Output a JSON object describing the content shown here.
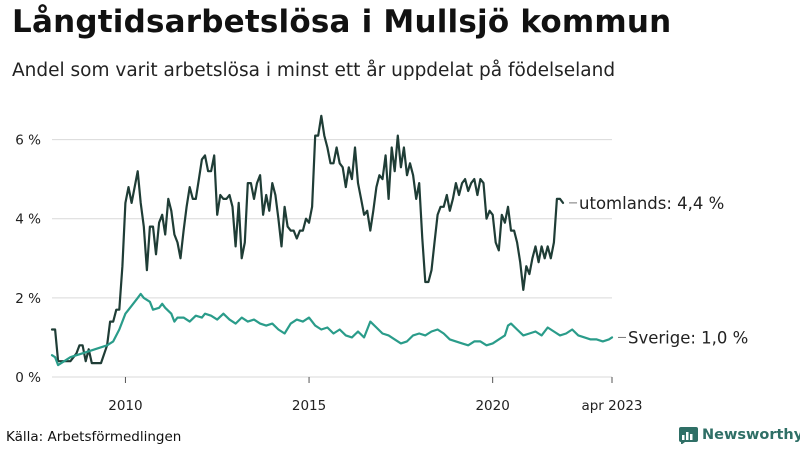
{
  "title": "Långtidsarbetslösa i Mullsjö kommun",
  "subtitle": "Andel som varit arbetslösa i minst ett år uppdelat på födelseland",
  "source": "Källa: Arbetsförmedlingen",
  "logo_text": "Newsworthy",
  "colors": {
    "utomlands": "#1f3d36",
    "sverige": "#2a9c8a",
    "grid": "#d9d9d9",
    "brand": "#2f6f66"
  },
  "chart_data": {
    "type": "line",
    "title": "Långtidsarbetslösa i Mullsjö kommun",
    "subtitle": "Andel som varit arbetslösa i minst ett år uppdelat på födelseland",
    "x_range": [
      "2008-01",
      "2023-04"
    ],
    "ylim": [
      0,
      7
    ],
    "y_ticks": [
      0,
      2,
      4,
      6
    ],
    "y_tick_labels": [
      "0 %",
      "2 %",
      "4 %",
      "6 %"
    ],
    "x_ticks": [
      "2010-01",
      "2015-01",
      "2020-01",
      "2023-04"
    ],
    "x_tick_labels": [
      "2010",
      "2015",
      "2020",
      "apr 2023"
    ],
    "grid": "horizontal",
    "series": [
      {
        "name": "utomlands",
        "end_label": "utomlands: 4,4 %",
        "color": "#1f3d36",
        "points": [
          [
            "2008-01",
            1.2
          ],
          [
            "2008-02",
            1.2
          ],
          [
            "2008-03",
            0.4
          ],
          [
            "2008-05",
            0.4
          ],
          [
            "2008-07",
            0.4
          ],
          [
            "2008-09",
            0.6
          ],
          [
            "2008-10",
            0.8
          ],
          [
            "2008-11",
            0.8
          ],
          [
            "2008-12",
            0.4
          ],
          [
            "2009-01",
            0.7
          ],
          [
            "2009-02",
            0.35
          ],
          [
            "2009-05",
            0.35
          ],
          [
            "2009-07",
            0.8
          ],
          [
            "2009-08",
            1.4
          ],
          [
            "2009-09",
            1.4
          ],
          [
            "2009-10",
            1.7
          ],
          [
            "2009-11",
            1.7
          ],
          [
            "2009-12",
            2.8
          ],
          [
            "2010-01",
            4.4
          ],
          [
            "2010-02",
            4.8
          ],
          [
            "2010-03",
            4.4
          ],
          [
            "2010-05",
            5.2
          ],
          [
            "2010-06",
            4.4
          ],
          [
            "2010-07",
            3.8
          ],
          [
            "2010-08",
            2.7
          ],
          [
            "2010-09",
            3.8
          ],
          [
            "2010-10",
            3.8
          ],
          [
            "2010-11",
            3.1
          ],
          [
            "2010-12",
            3.9
          ],
          [
            "2011-01",
            4.1
          ],
          [
            "2011-02",
            3.6
          ],
          [
            "2011-03",
            4.5
          ],
          [
            "2011-04",
            4.2
          ],
          [
            "2011-05",
            3.6
          ],
          [
            "2011-06",
            3.4
          ],
          [
            "2011-07",
            3.0
          ],
          [
            "2011-08",
            3.7
          ],
          [
            "2011-09",
            4.3
          ],
          [
            "2011-10",
            4.8
          ],
          [
            "2011-11",
            4.5
          ],
          [
            "2011-12",
            4.5
          ],
          [
            "2012-01",
            5.0
          ],
          [
            "2012-02",
            5.5
          ],
          [
            "2012-03",
            5.6
          ],
          [
            "2012-04",
            5.2
          ],
          [
            "2012-05",
            5.2
          ],
          [
            "2012-06",
            5.6
          ],
          [
            "2012-07",
            4.1
          ],
          [
            "2012-08",
            4.6
          ],
          [
            "2012-09",
            4.5
          ],
          [
            "2012-10",
            4.5
          ],
          [
            "2012-11",
            4.6
          ],
          [
            "2012-12",
            4.3
          ],
          [
            "2013-01",
            3.3
          ],
          [
            "2013-02",
            4.4
          ],
          [
            "2013-03",
            3.0
          ],
          [
            "2013-04",
            3.4
          ],
          [
            "2013-05",
            4.9
          ],
          [
            "2013-06",
            4.9
          ],
          [
            "2013-07",
            4.5
          ],
          [
            "2013-08",
            4.9
          ],
          [
            "2013-09",
            5.1
          ],
          [
            "2013-10",
            4.1
          ],
          [
            "2013-11",
            4.6
          ],
          [
            "2013-12",
            4.2
          ],
          [
            "2014-01",
            4.9
          ],
          [
            "2014-02",
            4.6
          ],
          [
            "2014-03",
            4.0
          ],
          [
            "2014-04",
            3.3
          ],
          [
            "2014-05",
            4.3
          ],
          [
            "2014-06",
            3.8
          ],
          [
            "2014-07",
            3.7
          ],
          [
            "2014-08",
            3.7
          ],
          [
            "2014-09",
            3.5
          ],
          [
            "2014-10",
            3.7
          ],
          [
            "2014-11",
            3.7
          ],
          [
            "2014-12",
            4.0
          ],
          [
            "2015-01",
            3.9
          ],
          [
            "2015-02",
            4.3
          ],
          [
            "2015-03",
            6.1
          ],
          [
            "2015-04",
            6.1
          ],
          [
            "2015-05",
            6.6
          ],
          [
            "2015-06",
            6.1
          ],
          [
            "2015-07",
            5.8
          ],
          [
            "2015-08",
            5.4
          ],
          [
            "2015-09",
            5.4
          ],
          [
            "2015-10",
            5.8
          ],
          [
            "2015-11",
            5.4
          ],
          [
            "2015-12",
            5.3
          ],
          [
            "2016-01",
            4.8
          ],
          [
            "2016-02",
            5.3
          ],
          [
            "2016-03",
            5.0
          ],
          [
            "2016-04",
            5.8
          ],
          [
            "2016-05",
            4.9
          ],
          [
            "2016-06",
            4.5
          ],
          [
            "2016-07",
            4.1
          ],
          [
            "2016-08",
            4.2
          ],
          [
            "2016-09",
            3.7
          ],
          [
            "2016-10",
            4.2
          ],
          [
            "2016-11",
            4.8
          ],
          [
            "2016-12",
            5.1
          ],
          [
            "2017-01",
            5.0
          ],
          [
            "2017-02",
            5.6
          ],
          [
            "2017-03",
            4.5
          ],
          [
            "2017-04",
            5.8
          ],
          [
            "2017-05",
            5.2
          ],
          [
            "2017-06",
            6.1
          ],
          [
            "2017-07",
            5.3
          ],
          [
            "2017-08",
            5.8
          ],
          [
            "2017-09",
            5.1
          ],
          [
            "2017-10",
            5.4
          ],
          [
            "2017-11",
            5.1
          ],
          [
            "2017-12",
            4.5
          ],
          [
            "2018-01",
            4.9
          ],
          [
            "2018-02",
            3.5
          ],
          [
            "2018-03",
            2.4
          ],
          [
            "2018-04",
            2.4
          ],
          [
            "2018-05",
            2.7
          ],
          [
            "2018-06",
            3.4
          ],
          [
            "2018-07",
            4.1
          ],
          [
            "2018-08",
            4.3
          ],
          [
            "2018-09",
            4.3
          ],
          [
            "2018-10",
            4.6
          ],
          [
            "2018-11",
            4.2
          ],
          [
            "2018-12",
            4.5
          ],
          [
            "2019-01",
            4.9
          ],
          [
            "2019-02",
            4.6
          ],
          [
            "2019-03",
            4.9
          ],
          [
            "2019-04",
            5.0
          ],
          [
            "2019-05",
            4.7
          ],
          [
            "2019-06",
            4.9
          ],
          [
            "2019-07",
            5.0
          ],
          [
            "2019-08",
            4.6
          ],
          [
            "2019-09",
            5.0
          ],
          [
            "2019-10",
            4.9
          ],
          [
            "2019-11",
            4.0
          ],
          [
            "2019-12",
            4.2
          ],
          [
            "2020-01",
            4.1
          ],
          [
            "2020-02",
            3.4
          ],
          [
            "2020-03",
            3.2
          ],
          [
            "2020-04",
            4.1
          ],
          [
            "2020-05",
            3.9
          ],
          [
            "2020-06",
            4.3
          ],
          [
            "2020-07",
            3.7
          ],
          [
            "2020-08",
            3.7
          ],
          [
            "2020-09",
            3.4
          ],
          [
            "2020-10",
            2.9
          ],
          [
            "2020-11",
            2.2
          ],
          [
            "2020-12",
            2.8
          ],
          [
            "2021-01",
            2.6
          ],
          [
            "2021-02",
            3.0
          ],
          [
            "2021-03",
            3.3
          ],
          [
            "2021-04",
            2.9
          ],
          [
            "2021-05",
            3.3
          ],
          [
            "2021-06",
            3.0
          ],
          [
            "2021-07",
            3.3
          ],
          [
            "2021-08",
            3.0
          ],
          [
            "2021-09",
            3.4
          ],
          [
            "2021-10",
            4.5
          ],
          [
            "2021-11",
            4.5
          ],
          [
            "2021-12",
            4.4
          ]
        ]
      },
      {
        "name": "Sverige",
        "end_label": "Sverige: 1,0 %",
        "color": "#2a9c8a",
        "points": [
          [
            "2008-01",
            0.55
          ],
          [
            "2008-02",
            0.5
          ],
          [
            "2008-03",
            0.3
          ],
          [
            "2008-05",
            0.4
          ],
          [
            "2008-07",
            0.5
          ],
          [
            "2008-09",
            0.55
          ],
          [
            "2008-11",
            0.6
          ],
          [
            "2009-01",
            0.65
          ],
          [
            "2009-03",
            0.7
          ],
          [
            "2009-05",
            0.75
          ],
          [
            "2009-07",
            0.8
          ],
          [
            "2009-09",
            0.9
          ],
          [
            "2009-11",
            1.2
          ],
          [
            "2010-01",
            1.6
          ],
          [
            "2010-03",
            1.8
          ],
          [
            "2010-05",
            2.0
          ],
          [
            "2010-06",
            2.1
          ],
          [
            "2010-07",
            2.0
          ],
          [
            "2010-09",
            1.9
          ],
          [
            "2010-10",
            1.7
          ],
          [
            "2010-12",
            1.75
          ],
          [
            "2011-01",
            1.85
          ],
          [
            "2011-02",
            1.75
          ],
          [
            "2011-04",
            1.6
          ],
          [
            "2011-05",
            1.4
          ],
          [
            "2011-06",
            1.5
          ],
          [
            "2011-08",
            1.5
          ],
          [
            "2011-10",
            1.4
          ],
          [
            "2011-12",
            1.55
          ],
          [
            "2012-02",
            1.5
          ],
          [
            "2012-03",
            1.6
          ],
          [
            "2012-05",
            1.55
          ],
          [
            "2012-07",
            1.45
          ],
          [
            "2012-09",
            1.6
          ],
          [
            "2012-11",
            1.45
          ],
          [
            "2013-01",
            1.35
          ],
          [
            "2013-03",
            1.5
          ],
          [
            "2013-05",
            1.4
          ],
          [
            "2013-07",
            1.45
          ],
          [
            "2013-09",
            1.35
          ],
          [
            "2013-11",
            1.3
          ],
          [
            "2014-01",
            1.35
          ],
          [
            "2014-03",
            1.2
          ],
          [
            "2014-05",
            1.1
          ],
          [
            "2014-07",
            1.35
          ],
          [
            "2014-09",
            1.45
          ],
          [
            "2014-11",
            1.4
          ],
          [
            "2015-01",
            1.5
          ],
          [
            "2015-03",
            1.3
          ],
          [
            "2015-05",
            1.2
          ],
          [
            "2015-07",
            1.25
          ],
          [
            "2015-09",
            1.1
          ],
          [
            "2015-11",
            1.2
          ],
          [
            "2016-01",
            1.05
          ],
          [
            "2016-03",
            1.0
          ],
          [
            "2016-05",
            1.15
          ],
          [
            "2016-07",
            1.0
          ],
          [
            "2016-09",
            1.4
          ],
          [
            "2016-11",
            1.25
          ],
          [
            "2017-01",
            1.1
          ],
          [
            "2017-03",
            1.05
          ],
          [
            "2017-05",
            0.95
          ],
          [
            "2017-07",
            0.85
          ],
          [
            "2017-09",
            0.9
          ],
          [
            "2017-11",
            1.05
          ],
          [
            "2018-01",
            1.1
          ],
          [
            "2018-03",
            1.05
          ],
          [
            "2018-05",
            1.15
          ],
          [
            "2018-07",
            1.2
          ],
          [
            "2018-09",
            1.1
          ],
          [
            "2018-11",
            0.95
          ],
          [
            "2019-01",
            0.9
          ],
          [
            "2019-03",
            0.85
          ],
          [
            "2019-05",
            0.8
          ],
          [
            "2019-07",
            0.9
          ],
          [
            "2019-09",
            0.9
          ],
          [
            "2019-11",
            0.8
          ],
          [
            "2020-01",
            0.85
          ],
          [
            "2020-03",
            0.95
          ],
          [
            "2020-05",
            1.05
          ],
          [
            "2020-06",
            1.3
          ],
          [
            "2020-07",
            1.35
          ],
          [
            "2020-09",
            1.2
          ],
          [
            "2020-11",
            1.05
          ],
          [
            "2021-01",
            1.1
          ],
          [
            "2021-03",
            1.15
          ],
          [
            "2021-05",
            1.05
          ],
          [
            "2021-07",
            1.25
          ],
          [
            "2021-09",
            1.15
          ],
          [
            "2021-11",
            1.05
          ],
          [
            "2022-01",
            1.1
          ],
          [
            "2022-03",
            1.2
          ],
          [
            "2022-05",
            1.05
          ],
          [
            "2022-07",
            1.0
          ],
          [
            "2022-09",
            0.95
          ],
          [
            "2022-11",
            0.95
          ],
          [
            "2023-01",
            0.9
          ],
          [
            "2023-03",
            0.95
          ],
          [
            "2023-04",
            1.0
          ]
        ]
      }
    ]
  }
}
